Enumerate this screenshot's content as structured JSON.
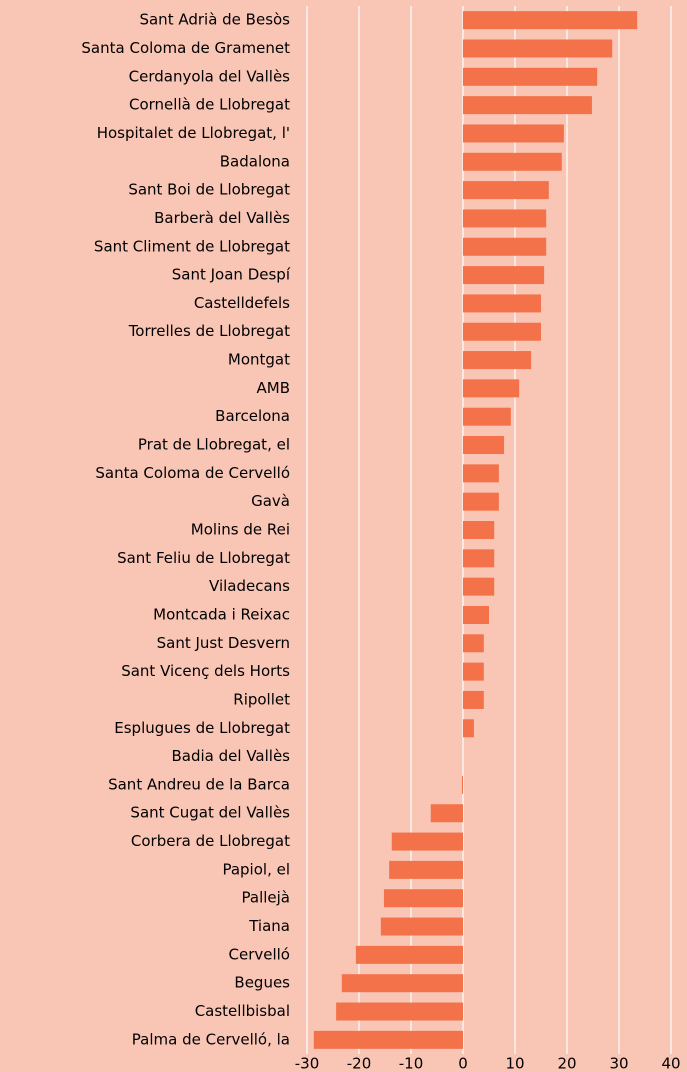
{
  "chart_data": {
    "type": "bar",
    "orientation": "horizontal",
    "categories": [
      "Sant Adrià de Besòs",
      "Santa Coloma de Gramenet",
      "Cerdanyola del Vallès",
      "Cornellà de Llobregat",
      "Hospitalet de Llobregat, l'",
      "Badalona",
      "Sant Boi de Llobregat",
      "Barberà del Vallès",
      "Sant Climent de Llobregat",
      "Sant Joan Despí",
      "Castelldefels",
      "Torrelles de Llobregat",
      "Montgat",
      "AMB",
      "Barcelona",
      "Prat de Llobregat, el",
      "Santa Coloma de Cervelló",
      "Gavà",
      "Molins de Rei",
      "Sant Feliu de Llobregat",
      "Viladecans",
      "Montcada i Reixac",
      "Sant Just Desvern",
      "Sant Vicenç dels Horts",
      "Ripollet",
      "Esplugues de Llobregat",
      "Badia del Vallès",
      "Sant Andreu de la Barca",
      "Sant Cugat del Vallès",
      "Corbera de Llobregat",
      "Papiol, el",
      "Pallejà",
      "Tiana",
      "Cervelló",
      "Begues",
      "Castellbisbal",
      "Palma de Cervelló, la"
    ],
    "values": [
      33.5,
      28.7,
      25.8,
      24.8,
      19.4,
      19.0,
      16.5,
      16.0,
      16.0,
      15.6,
      15.0,
      15.0,
      13.1,
      10.8,
      9.2,
      7.9,
      6.9,
      6.9,
      6.0,
      6.0,
      6.0,
      5.0,
      4.0,
      4.0,
      4.0,
      2.1,
      0,
      -0.2,
      -6.2,
      -13.7,
      -14.2,
      -15.2,
      -15.8,
      -20.6,
      -23.3,
      -24.4,
      -28.7
    ],
    "color": "#f4724a",
    "xlim": [
      -30,
      40
    ],
    "xticks": [
      -30,
      -20,
      -10,
      0,
      10,
      20,
      30,
      40
    ],
    "grid": true
  }
}
